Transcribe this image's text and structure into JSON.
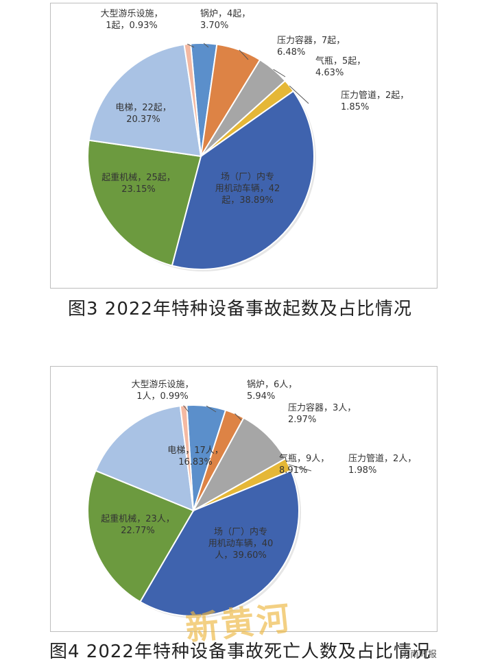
{
  "colors": {
    "锅炉": "#5b8fcb",
    "压力容器": "#dd8345",
    "气瓶": "#a6a6a6",
    "压力管道": "#e5b737",
    "场（厂）内专用机动车辆": "#3f63ae",
    "起重机械": "#6c9a3f",
    "电梯": "#a9c2e4",
    "大型游乐设施": "#f4b9a2"
  },
  "chart_data": [
    {
      "type": "pie",
      "title": "图3  2022年特种设备事故起数及占比情况",
      "unit": "起",
      "slices": [
        {
          "name": "锅炉",
          "value": 4,
          "pct": "3.70%",
          "label_lines": [
            "锅炉，4起，",
            "3.70%"
          ]
        },
        {
          "name": "压力容器",
          "value": 7,
          "pct": "6.48%",
          "label_lines": [
            "压力容器，7起，",
            "6.48%"
          ]
        },
        {
          "name": "气瓶",
          "value": 5,
          "pct": "4.63%",
          "label_lines": [
            "气瓶，5起，",
            "4.63%"
          ]
        },
        {
          "name": "压力管道",
          "value": 2,
          "pct": "1.85%",
          "label_lines": [
            "压力管道，2起，",
            "1.85%"
          ]
        },
        {
          "name": "场（厂）内专用机动车辆",
          "value": 42,
          "pct": "38.89%",
          "label_lines": [
            "场（厂）内专",
            "用机动车辆，42",
            "起，38.89%"
          ]
        },
        {
          "name": "起重机械",
          "value": 25,
          "pct": "23.15%",
          "label_lines": [
            "起重机械，25起，",
            "23.15%"
          ]
        },
        {
          "name": "电梯",
          "value": 22,
          "pct": "20.37%",
          "label_lines": [
            "电梯，22起，",
            "20.37%"
          ]
        },
        {
          "name": "大型游乐设施",
          "value": 1,
          "pct": "0.93%",
          "label_lines": [
            "大型游乐设施，",
            "1起，0.93%"
          ]
        }
      ]
    },
    {
      "type": "pie",
      "title": "图4  2022年特种设备事故死亡人数及占比情况",
      "unit": "人",
      "slices": [
        {
          "name": "锅炉",
          "value": 6,
          "pct": "5.94%",
          "label_lines": [
            "锅炉，6人，",
            "5.94%"
          ]
        },
        {
          "name": "压力容器",
          "value": 3,
          "pct": "2.97%",
          "label_lines": [
            "压力容器，3人，",
            "2.97%"
          ]
        },
        {
          "name": "气瓶",
          "value": 9,
          "pct": "8.91%",
          "label_lines": [
            "气瓶，9人，",
            "8.91%"
          ]
        },
        {
          "name": "压力管道",
          "value": 2,
          "pct": "1.98%",
          "label_lines": [
            "压力管道，2人，",
            "1.98%"
          ]
        },
        {
          "name": "场（厂）内专用机动车辆",
          "value": 40,
          "pct": "39.60%",
          "label_lines": [
            "场（厂）内专",
            "用机动车辆，40",
            "人，39.60%"
          ]
        },
        {
          "name": "起重机械",
          "value": 23,
          "pct": "22.77%",
          "label_lines": [
            "起重机械，23人，",
            "22.77%"
          ]
        },
        {
          "name": "电梯",
          "value": 17,
          "pct": "16.83%",
          "label_lines": [
            "电梯，17人，",
            "16.83%"
          ]
        },
        {
          "name": "大型游乐设施",
          "value": 1,
          "pct": "0.99%",
          "label_lines": [
            "大型游乐设施，",
            "1人，0.99%"
          ]
        }
      ]
    }
  ],
  "watermark": "新黄河",
  "source_tag": "济南时报"
}
